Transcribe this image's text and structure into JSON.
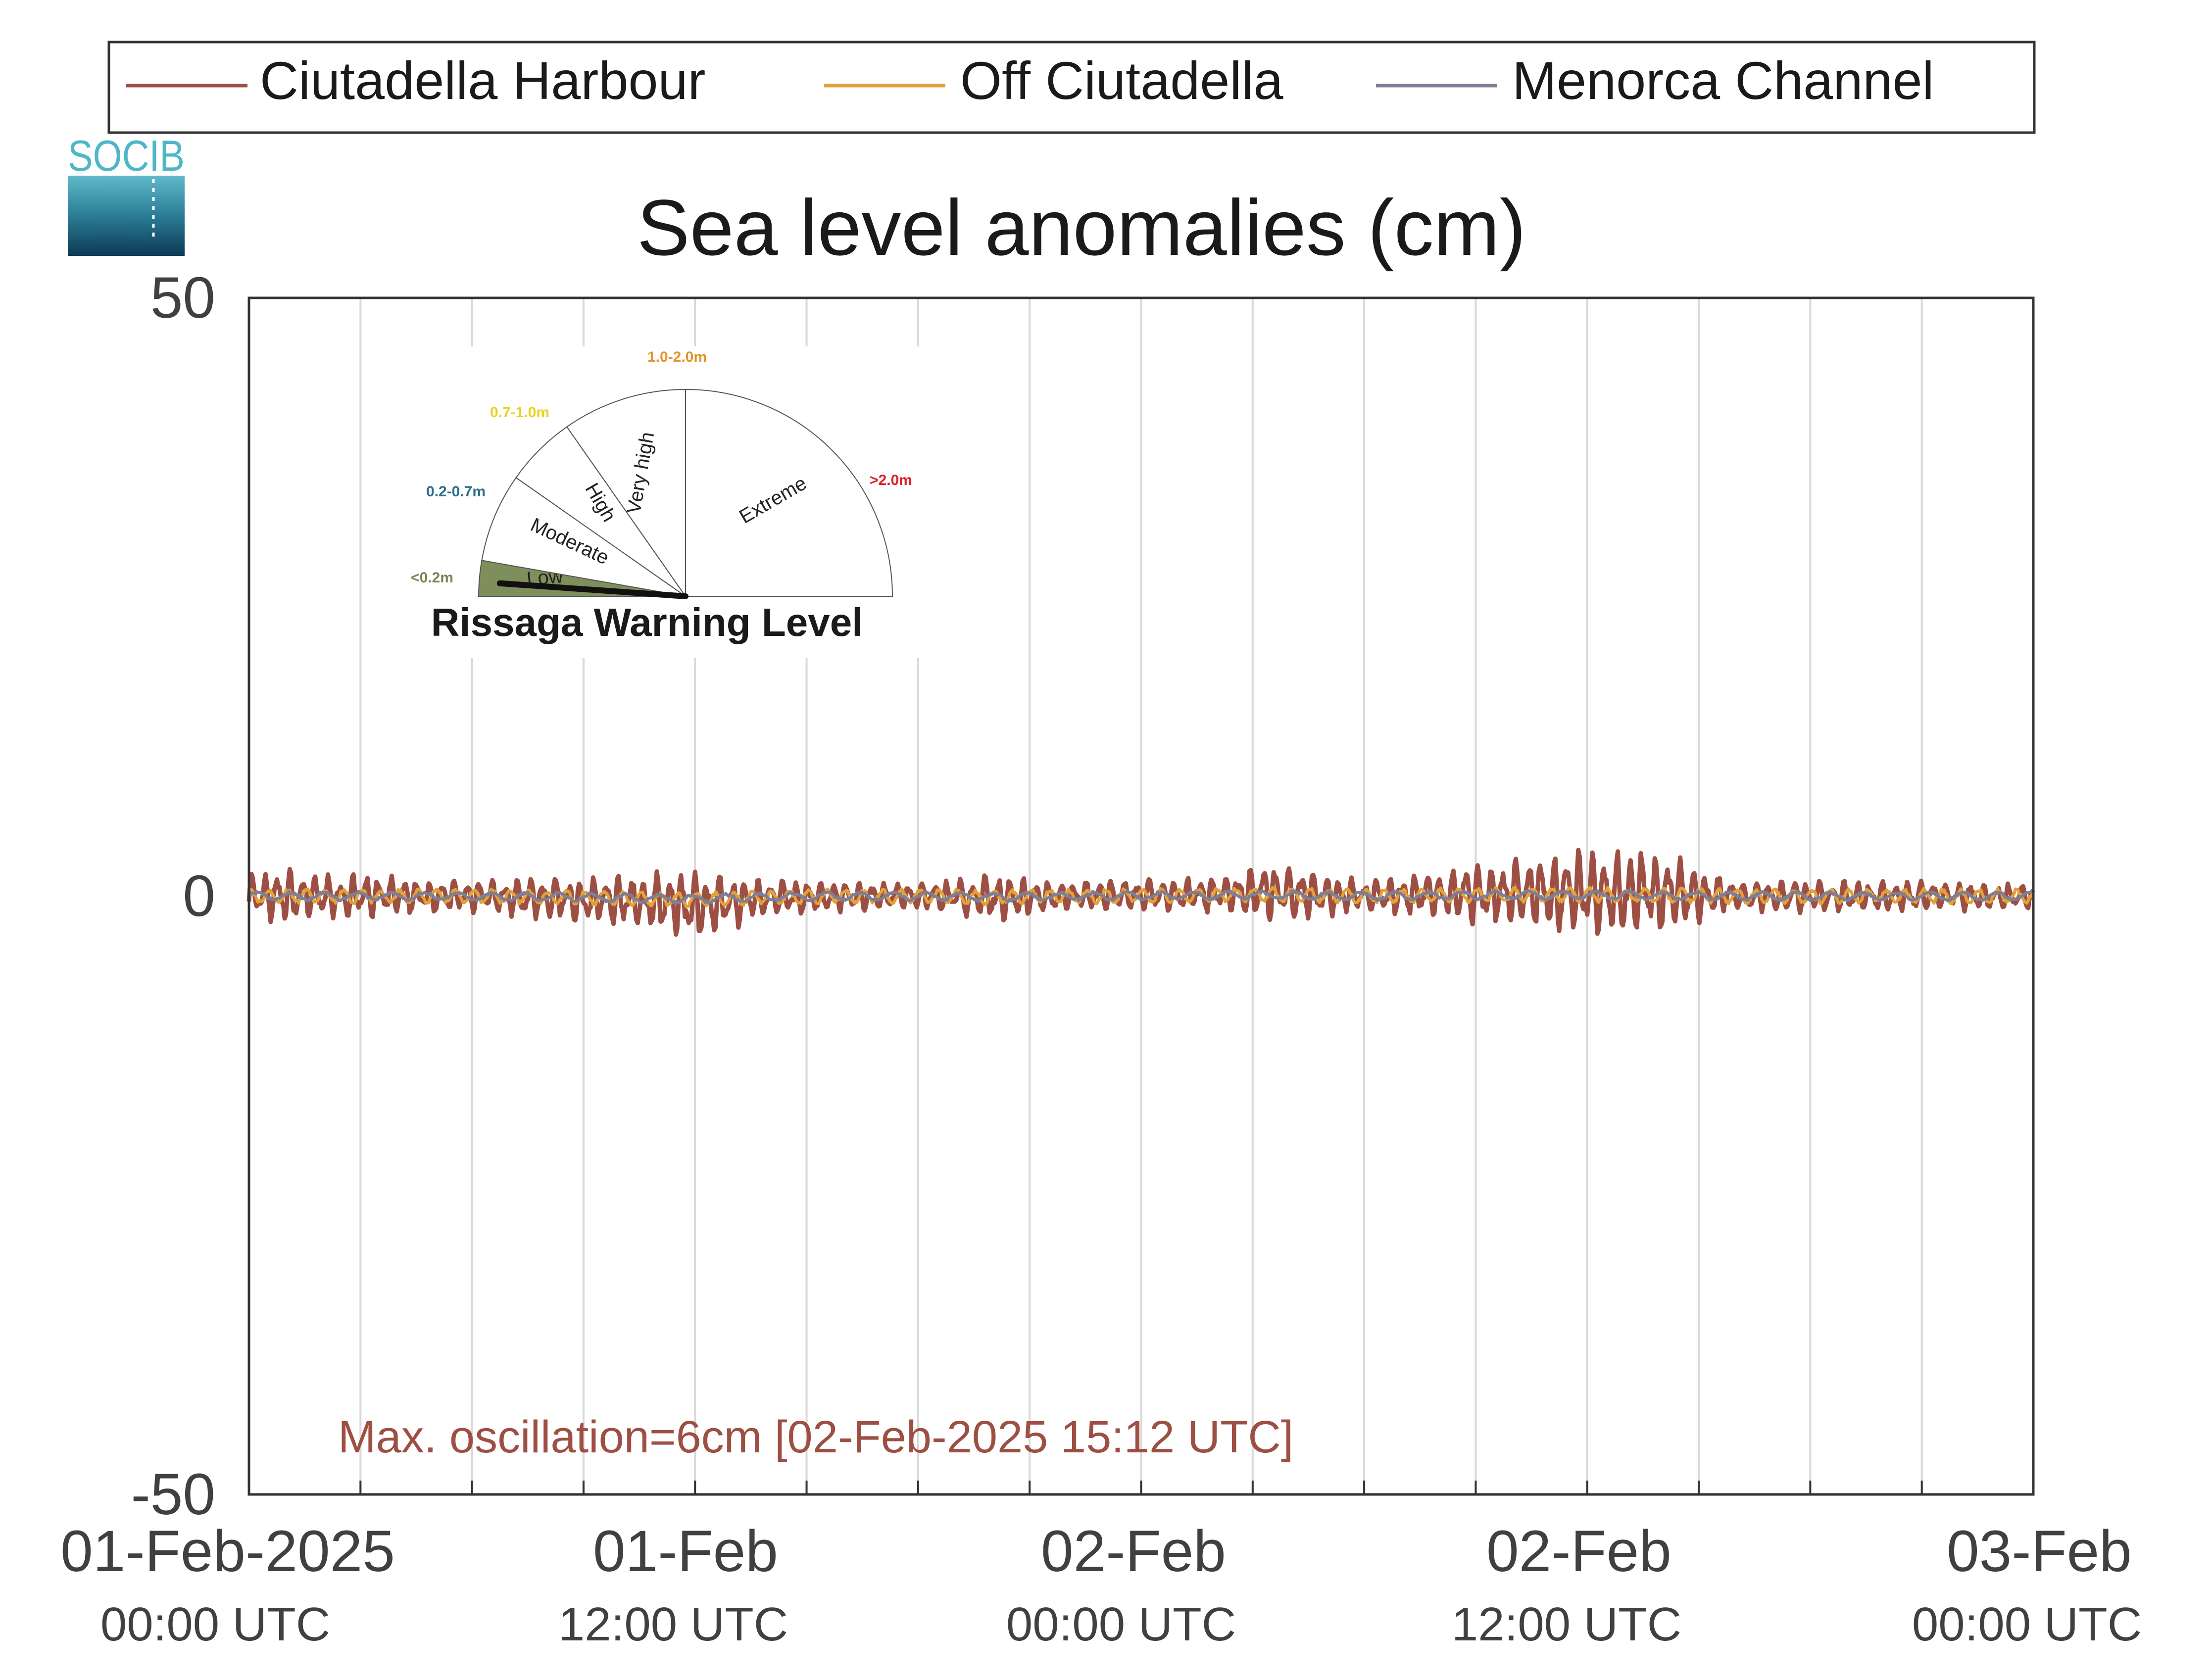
{
  "logo": {
    "text": "SOCIB"
  },
  "legend": {
    "position": "top",
    "items": [
      {
        "name": "Ciutadella Harbour",
        "color": "#9e4f43"
      },
      {
        "name": "Off Ciutadella",
        "color": "#e3a13a"
      },
      {
        "name": "Menorca Channel",
        "color": "#7d7f96"
      }
    ]
  },
  "gauge": {
    "title": "Rissaga Warning Level",
    "needle_level": "Low",
    "sectors": [
      {
        "name": "Low",
        "range": "<0.2m",
        "range_color": "#7e8456",
        "fill": "#7e8f5b"
      },
      {
        "name": "Moderate",
        "range": "0.2-0.7m",
        "range_color": "#2a6e89",
        "fill": "#ffffff"
      },
      {
        "name": "High",
        "range": "0.7-1.0m",
        "range_color": "#e8d21d",
        "fill": "#ffffff"
      },
      {
        "name": "Very high",
        "range": "1.0-2.0m",
        "range_color": "#e3962a",
        "fill": "#ffffff"
      },
      {
        "name": "Extreme",
        "range": ">2.0m",
        "range_color": "#d9202a",
        "fill": "#ffffff"
      }
    ]
  },
  "chart_data": {
    "type": "line",
    "title": "Sea level anomalies (cm)",
    "xlabel": "",
    "ylabel": "",
    "xlim": [
      "2025-02-01 00:00",
      "2025-02-03 00:00"
    ],
    "ylim": [
      -50,
      50
    ],
    "yticks": [
      -50,
      0,
      50
    ],
    "grid": "vertical",
    "xticks": [
      {
        "label": "01-Feb-2025",
        "sub": "00:00 UTC"
      },
      {
        "label": "01-Feb",
        "sub": "12:00 UTC"
      },
      {
        "label": "02-Feb",
        "sub": "00:00 UTC"
      },
      {
        "label": "02-Feb",
        "sub": "12:00 UTC"
      },
      {
        "label": "03-Feb",
        "sub": "00:00 UTC"
      }
    ],
    "series": [
      {
        "name": "Ciutadella Harbour",
        "color": "#9e4f43",
        "envelope_hours": [
          0,
          2,
          4,
          6,
          8,
          10,
          12,
          14,
          16,
          18,
          20,
          22,
          24,
          26,
          28,
          30,
          32,
          34,
          36,
          38,
          40,
          42,
          44,
          46,
          48
        ],
        "amplitude_cm": [
          1.8,
          1.5,
          1.2,
          1.0,
          1.4,
          1.6,
          2.2,
          1.2,
          1.0,
          0.9,
          1.5,
          1.0,
          1.0,
          1.2,
          2.0,
          1.0,
          1.6,
          2.2,
          2.8,
          3.0,
          1.0,
          1.0,
          1.0,
          0.9,
          0.8
        ],
        "offset_cm": [
          0,
          0,
          0,
          0,
          -0.2,
          -0.4,
          -0.8,
          -0.2,
          0,
          0,
          -0.2,
          0,
          0.1,
          0.2,
          0.3,
          0,
          0.2,
          0.3,
          0.3,
          0.2,
          0,
          0,
          0,
          0,
          0
        ]
      },
      {
        "name": "Off Ciutadella",
        "color": "#e3a13a",
        "amplitude_cm": 0.5
      },
      {
        "name": "Menorca Channel",
        "color": "#7d7f96",
        "amplitude_cm": 0.3
      }
    ],
    "annotation": {
      "text": "Max. oscillation=6cm [02-Feb-2025 15:12 UTC]",
      "color": "#9e4f43"
    }
  }
}
